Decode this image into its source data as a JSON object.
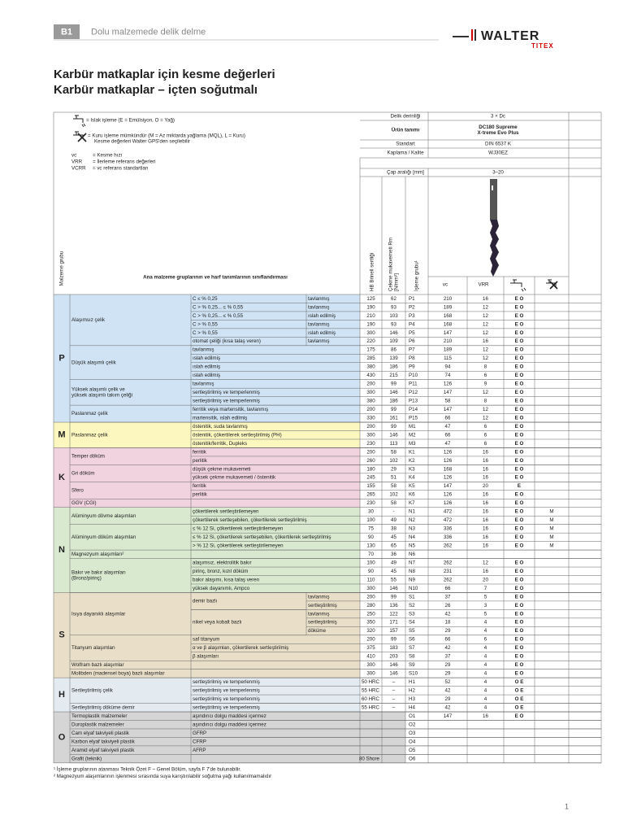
{
  "header": {
    "section": "B1",
    "chapter": "Dolu malzemede delik delme",
    "logo": "WALTER",
    "logo_sub": "TITEX"
  },
  "title": [
    "Karbür matkaplar için kesme değerleri",
    "Karbür matkaplar – içten soğutmalı"
  ],
  "legend": {
    "wet": "= Islak işleme (E = Emülsiyon, O = Yağ)",
    "dry": [
      "= Kuru işleme mümkündür (M = Az miktarda yağlama (MQL), L = Kuru)",
      "Kesme değerleri Walter GPS'den seçilebilir"
    ],
    "abbr": [
      [
        "vc",
        "= Kesme hızı"
      ],
      [
        "VRR",
        "= İlerleme referans değerleri"
      ],
      [
        "VCRR",
        "= vc referans standartları"
      ]
    ]
  },
  "tool": {
    "rows": [
      [
        "Delik derinliği",
        "3 × Dc"
      ],
      [
        "Ürün tanımı",
        [
          "DC180 Supreme",
          "X·treme Evo Plus"
        ]
      ],
      [
        "Standart",
        "DIN 6537 K"
      ],
      [
        "Kaplama / Kalite",
        "WJ30EZ"
      ],
      [
        "Çap aralığı [mm]",
        "3–20"
      ]
    ]
  },
  "table": {
    "col_material_group": "Malzeme grubu",
    "col_classification": "Ana malzeme gruplarının ve harf tanımlarının sınıflandırması",
    "col_hb": "HB Brinell sertliği",
    "col_rm": [
      "Çekme mukavemeti Rm",
      "[N/mm²]"
    ],
    "col_group": "İşleme grubu¹",
    "col_vc": "vc",
    "col_vrr": "VRR",
    "groups": [
      {
        "letter": "P",
        "color": "#cfe3f4",
        "materials": [
          {
            "name": "Alaşımsız çelik",
            "rows": [
              {
                "sub": "C ≤ % 0,25",
                "cond": "tavlanmış",
                "hb": 125,
                "rm": 62,
                "code": "P1",
                "vc": 210,
                "vrr": 16,
                "wet": "E O"
              },
              {
                "sub": "C > % 0,25... ≤ % 0,55",
                "cond": "tavlanmış",
                "hb": 190,
                "rm": 93,
                "code": "P2",
                "vc": 189,
                "vrr": 12,
                "wet": "E O"
              },
              {
                "sub": "C > % 0,25... ≤ % 0,55",
                "cond": "ıslah edilmiş",
                "hb": 210,
                "rm": 103,
                "code": "P3",
                "vc": 168,
                "vrr": 12,
                "wet": "E O"
              },
              {
                "sub": "C > % 0,55",
                "cond": "tavlanmış",
                "hb": 190,
                "rm": 93,
                "code": "P4",
                "vc": 168,
                "vrr": 12,
                "wet": "E O"
              },
              {
                "sub": "C > % 0,55",
                "cond": "ıslah edilmiş",
                "hb": 300,
                "rm": 146,
                "code": "P5",
                "vc": 147,
                "vrr": 12,
                "wet": "E O"
              },
              {
                "sub": "otomat çeliği (kısa talaş veren)",
                "cond": "tavlanmış",
                "hb": 220,
                "rm": 109,
                "code": "P6",
                "vc": 210,
                "vrr": 16,
                "wet": "E O"
              }
            ]
          },
          {
            "name": "Düşük alaşımlı çelik",
            "rows": [
              {
                "sub": "tavlanmış",
                "hb": 175,
                "rm": 86,
                "code": "P7",
                "vc": 189,
                "vrr": 12,
                "wet": "E O"
              },
              {
                "sub": "ıslah edilmiş",
                "hb": 285,
                "rm": 139,
                "code": "P8",
                "vc": 115,
                "vrr": 12,
                "wet": "E O"
              },
              {
                "sub": "ıslah edilmiş",
                "hb": 380,
                "rm": 186,
                "code": "P9",
                "vc": 94,
                "vrr": 8,
                "wet": "E O"
              },
              {
                "sub": "ıslah edilmiş",
                "hb": 430,
                "rm": 215,
                "code": "P10",
                "vc": 74,
                "vrr": 6,
                "wet": "E O"
              }
            ]
          },
          {
            "name": [
              "Yüksek alaşımlı çelik ve",
              "yüksek alaşımlı takım çeliği"
            ],
            "rows": [
              {
                "sub": "tavlanmış",
                "hb": 200,
                "rm": 99,
                "code": "P11",
                "vc": 126,
                "vrr": 9,
                "wet": "E O"
              },
              {
                "sub": "sertleştirilmiş ve temperlenmiş",
                "hb": 300,
                "rm": 146,
                "code": "P12",
                "vc": 147,
                "vrr": 12,
                "wet": "E O"
              },
              {
                "sub": "sertleştirilmiş ve temperlenmiş",
                "hb": 380,
                "rm": 186,
                "code": "P13",
                "vc": 58,
                "vrr": 8,
                "wet": "E O"
              }
            ]
          },
          {
            "name": "Paslanmaz çelik",
            "rows": [
              {
                "sub": "ferritik veya martensitik, tavlanmış",
                "hb": 200,
                "rm": 99,
                "code": "P14",
                "vc": 147,
                "vrr": 12,
                "wet": "E O"
              },
              {
                "sub": "martensitik, ıslah edilmiş",
                "hb": 330,
                "rm": 161,
                "code": "P15",
                "vc": 66,
                "vrr": 12,
                "wet": "E O"
              }
            ]
          }
        ]
      },
      {
        "letter": "M",
        "color": "#fbf7bf",
        "materials": [
          {
            "name": "Paslanmaz çelik",
            "rows": [
              {
                "sub": "östenitik, suda tavlanmış",
                "hb": 200,
                "rm": 99,
                "code": "M1",
                "vc": 47,
                "vrr": 6,
                "wet": "E O"
              },
              {
                "sub": "östenitik, çökertilerek sertleştirilmiş (PH)",
                "hb": 300,
                "rm": 146,
                "code": "M2",
                "vc": 66,
                "vrr": 6,
                "wet": "E O"
              },
              {
                "sub": "östenitik/ferritik, Dupleks",
                "hb": 230,
                "rm": 113,
                "code": "M3",
                "vc": 47,
                "vrr": 6,
                "wet": "E O"
              }
            ]
          }
        ]
      },
      {
        "letter": "K",
        "color": "#f1d2df",
        "materials": [
          {
            "name": "Temper döküm",
            "rows": [
              {
                "sub": "ferritik",
                "hb": 200,
                "rm": 58,
                "code": "K1",
                "vc": 126,
                "vrr": 16,
                "wet": "E O"
              },
              {
                "sub": "perlitik",
                "hb": 260,
                "rm": 102,
                "code": "K2",
                "vc": 126,
                "vrr": 16,
                "wet": "E O"
              }
            ]
          },
          {
            "name": "Gri döküm",
            "rows": [
              {
                "sub": "düşük çekme mukavemeti",
                "hb": 180,
                "rm": 29,
                "code": "K3",
                "vc": 168,
                "vrr": 16,
                "wet": "E O"
              },
              {
                "sub": "yüksek çekme mukavemeti / östenitik",
                "hb": 245,
                "rm": 51,
                "code": "K4",
                "vc": 126,
                "vrr": 16,
                "wet": "E O"
              }
            ]
          },
          {
            "name": "Sfero",
            "rows": [
              {
                "sub": "ferritik",
                "hb": 155,
                "rm": 58,
                "code": "K5",
                "vc": 147,
                "vrr": 20,
                "wet": "E"
              },
              {
                "sub": "perlitik",
                "hb": 265,
                "rm": 102,
                "code": "K6",
                "vc": 126,
                "vrr": 16,
                "wet": "E O"
              }
            ]
          },
          {
            "name": "GGV (CGI)",
            "rows": [
              {
                "hb": 230,
                "rm": 58,
                "code": "K7",
                "vc": 126,
                "vrr": 16,
                "wet": "E O"
              }
            ]
          }
        ]
      },
      {
        "letter": "N",
        "color": "#d8e9cf",
        "materials": [
          {
            "name": "Alüminyum dövme alaşımları",
            "rows": [
              {
                "sub": "çökertilerek sertleştirilemeyen",
                "hb": 30,
                "rm": "-",
                "code": "N1",
                "vc": 472,
                "vrr": 16,
                "wet": "E O",
                "dry": "M"
              },
              {
                "sub": "çökertilerek sertleşebilen, çökertilerek sertleştirilmiş",
                "hb": 100,
                "rm": 49,
                "code": "N2",
                "vc": 472,
                "vrr": 16,
                "wet": "E O",
                "dry": "M"
              }
            ]
          },
          {
            "name": "Alüminyum döküm alaşımları",
            "rows": [
              {
                "sub": "≤ % 12 Si, çökertilerek sertleştirilemeyen",
                "hb": 75,
                "rm": 38,
                "code": "N3",
                "vc": 336,
                "vrr": 16,
                "wet": "E O",
                "dry": "M"
              },
              {
                "sub": "≤ % 12 Si, çökertilerek sertleşebilen, çökertilerek sertleştirilmiş",
                "hb": 90,
                "rm": 45,
                "code": "N4",
                "vc": 336,
                "vrr": 16,
                "wet": "E O",
                "dry": "M"
              },
              {
                "sub": "> % 12 Si, çökertilerek sertleştirilemeyen",
                "hb": 130,
                "rm": 65,
                "code": "N5",
                "vc": 262,
                "vrr": 16,
                "wet": "E O",
                "dry": "M"
              }
            ]
          },
          {
            "name": "Magnezyum alaşımları²",
            "rows": [
              {
                "hb": 70,
                "rm": 36,
                "code": "N6"
              }
            ]
          },
          {
            "name": [
              "Bakır ve bakır alaşımları",
              "(Bronz/pirinç)"
            ],
            "rows": [
              {
                "sub": "alaşımsız, elektrolitik bakır",
                "hb": 100,
                "rm": 49,
                "code": "N7",
                "vc": 262,
                "vrr": 12,
                "wet": "E O"
              },
              {
                "sub": "pirinç, bronz, kızıl döküm",
                "hb": 90,
                "rm": 45,
                "code": "N8",
                "vc": 231,
                "vrr": 16,
                "wet": "E O"
              },
              {
                "sub": "bakır alaşımı, kısa talaş veren",
                "hb": 110,
                "rm": 55,
                "code": "N9",
                "vc": 262,
                "vrr": 20,
                "wet": "E O"
              },
              {
                "sub": "yüksek dayanımlı, Ampco",
                "hb": 300,
                "rm": 146,
                "code": "N10",
                "vc": 66,
                "vrr": 7,
                "wet": "E O"
              }
            ]
          }
        ]
      },
      {
        "letter": "S",
        "color": "#e9dfc8",
        "materials": [
          {
            "name": "Isıya dayanıklı alaşımlar",
            "rows": [
              {
                "sub": "demir bazlı",
                "rows": [
                  {
                    "cond": "tavlanmış",
                    "hb": 200,
                    "rm": 99,
                    "code": "S1",
                    "vc": 37,
                    "vrr": 5,
                    "wet": "E O"
                  },
                  {
                    "cond": "sertleştirilmiş",
                    "hb": 280,
                    "rm": 136,
                    "code": "S2",
                    "vc": 26,
                    "vrr": 3,
                    "wet": "E O"
                  }
                ]
              },
              {
                "sub": "nikel veya kobalt bazlı",
                "rows": [
                  {
                    "cond": "tavlanmış",
                    "hb": 250,
                    "rm": 122,
                    "code": "S3",
                    "vc": 42,
                    "vrr": 5,
                    "wet": "E O"
                  },
                  {
                    "cond": "sertleştirilmiş",
                    "hb": 350,
                    "rm": 171,
                    "code": "S4",
                    "vc": 18,
                    "vrr": 4,
                    "wet": "E O"
                  },
                  {
                    "cond": "döküme",
                    "hb": 320,
                    "rm": 157,
                    "code": "S5",
                    "vc": 29,
                    "vrr": 4,
                    "wet": "E O"
                  }
                ]
              }
            ]
          },
          {
            "name": "Titanyum alaşımları",
            "rows": [
              {
                "sub": "saf titanyum",
                "hb": 200,
                "rm": 99,
                "code": "S6",
                "vc": 66,
                "vrr": 6,
                "wet": "E O"
              },
              {
                "sub": "α ve β alaşımları, çökertilerek sertleştirilmiş",
                "hb": 375,
                "rm": 183,
                "code": "S7",
                "vc": 42,
                "vrr": 4,
                "wet": "E O"
              },
              {
                "sub": "β alaşımları",
                "hb": 410,
                "rm": 203,
                "code": "S8",
                "vc": 37,
                "vrr": 4,
                "wet": "E O"
              }
            ]
          },
          {
            "name": "Wolfram bazlı alaşımlar",
            "rows": [
              {
                "hb": 300,
                "rm": 146,
                "code": "S9",
                "vc": 29,
                "vrr": 4,
                "wet": "E O"
              }
            ]
          },
          {
            "name": "Molibden (madensel boya) bazlı alaşımlar",
            "rows": [
              {
                "hb": 300,
                "rm": 146,
                "code": "S10",
                "vc": 29,
                "vrr": 4,
                "wet": "E O"
              }
            ]
          }
        ]
      },
      {
        "letter": "H",
        "color": "#e3ebf1",
        "materials": [
          {
            "name": "Sertleştirilmiş çelik",
            "rows": [
              {
                "sub": "sertleştirilmiş ve temperlenmiş",
                "hb": "50 HRC",
                "rm": "–",
                "code": "H1",
                "vc": 52,
                "vrr": 4,
                "wet": "O E"
              },
              {
                "sub": "sertleştirilmiş ve temperlenmiş",
                "hb": "55 HRC",
                "rm": "–",
                "code": "H2",
                "vc": 42,
                "vrr": 4,
                "wet": "O E"
              },
              {
                "sub": "sertleştirilmiş ve temperlenmiş",
                "hb": "60 HRC",
                "rm": "–",
                "code": "H3",
                "vc": 29,
                "vrr": 4,
                "wet": "O E"
              }
            ]
          },
          {
            "name": "Sertleştirilmiş döküme demir",
            "rows": [
              {
                "sub": "sertleştirilmiş ve temperlenmiş",
                "hb": "55 HRC",
                "rm": "–",
                "code": "H4",
                "vc": 42,
                "vrr": 4,
                "wet": "O E"
              }
            ]
          }
        ]
      },
      {
        "letter": "O",
        "color": "#d5d5d5",
        "materials": [
          {
            "name": "Termoplastik malzemeler",
            "rows": [
              {
                "sub": "aşındırıcı dolgu maddesi içermez",
                "code": "O1",
                "vc": 147,
                "vrr": 16,
                "wet": "E O"
              }
            ]
          },
          {
            "name": "Duroplastik malzemeler",
            "rows": [
              {
                "sub": "aşındırıcı dolgu maddesi içermez",
                "code": "O2"
              }
            ]
          },
          {
            "name": "Cam elyaf takviyeli plastik",
            "rows": [
              {
                "sub": "GFRP",
                "code": "O3"
              }
            ]
          },
          {
            "name": "Karbon elyaf takviyeli plastik",
            "rows": [
              {
                "sub": "CFRP",
                "code": "O4"
              }
            ]
          },
          {
            "name": "Aramid elyaf takviyeli plastik",
            "rows": [
              {
                "sub": "AFRP",
                "code": "O5"
              }
            ]
          },
          {
            "name": "Grafit (teknik)",
            "rows": [
              {
                "hb": "80 Shore",
                "code": "O6"
              }
            ]
          }
        ]
      }
    ]
  },
  "footnotes": [
    "¹ İşleme gruplarının atanması Teknik Özet F – Genel Bölüm, sayfa F 7'de bulunabilir.",
    "² Magnezyum alaşımlarının işlenmesi sırasında suya karıştırılabilir soğutma yağı kullanılmamalıdır"
  ],
  "page_number": "1"
}
